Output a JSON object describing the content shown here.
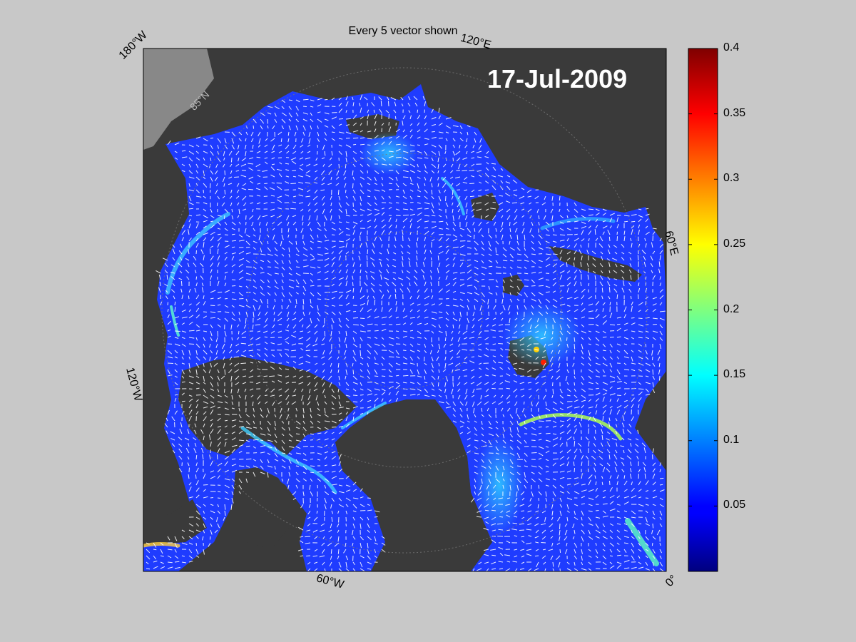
{
  "figure": {
    "title": "Every 5 vector shown",
    "date": "17-Jul-2009"
  },
  "map": {
    "projection": "north-polar-stereographic",
    "lon_labels": [
      "180°W",
      "120°E",
      "60°E",
      "0°",
      "60°W",
      "120°W"
    ],
    "lat_label": "85°N",
    "colors": {
      "background": "#c8c8c8",
      "land": "#3a3a3a",
      "no_data": "#888888",
      "ocean_low": "#1f3cff",
      "vectors": "#ffffff"
    }
  },
  "colorbar": {
    "colormap": "jet",
    "range": [
      0,
      0.4
    ],
    "tick_labels": [
      "0.4",
      "0.35",
      "0.3",
      "0.25",
      "0.2",
      "0.15",
      "0.1",
      "0.05"
    ],
    "tick_values": [
      0.4,
      0.35,
      0.3,
      0.25,
      0.2,
      0.15,
      0.1,
      0.05
    ]
  }
}
